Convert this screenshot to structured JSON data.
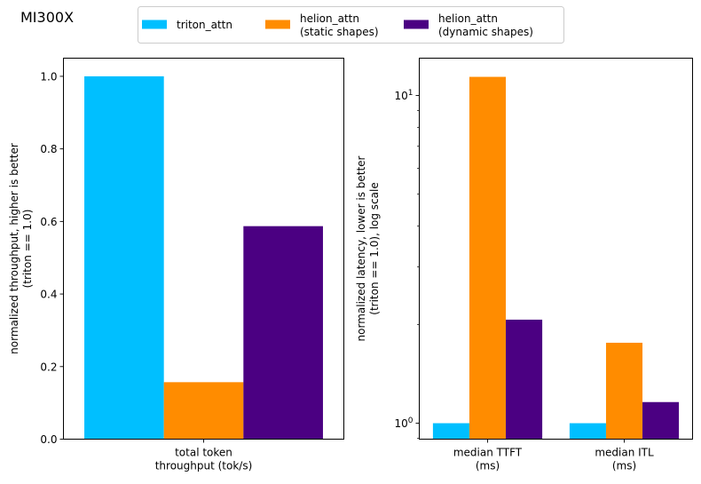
{
  "figure": {
    "suptitle": "MI300X"
  },
  "legend": {
    "placement": "top-center",
    "entries": [
      {
        "lines": [
          "triton_attn"
        ],
        "color": "#00bfff"
      },
      {
        "lines": [
          "helion_attn",
          "(static shapes)"
        ],
        "color": "#ff8c00"
      },
      {
        "lines": [
          "helion_attn",
          "(dynamic shapes)"
        ],
        "color": "#4b0082"
      }
    ]
  },
  "chart_data": [
    {
      "type": "bar",
      "title": "",
      "categories": [
        [
          "total token",
          "throughput (tok/s)"
        ]
      ],
      "series": [
        {
          "name": "triton_attn",
          "color": "#00bfff",
          "values": [
            1.0
          ]
        },
        {
          "name": "helion_attn (static shapes)",
          "color": "#ff8c00",
          "values": [
            0.157
          ]
        },
        {
          "name": "helion_attn (dynamic shapes)",
          "color": "#4b0082",
          "values": [
            0.587
          ]
        }
      ],
      "xlabel": "",
      "ylabel": [
        "normalized throughput, higher is better",
        "(triton == 1.0)"
      ],
      "yscale": "linear",
      "ylim": [
        0,
        1.05
      ],
      "yticks": [
        0.0,
        0.2,
        0.4,
        0.6,
        0.8,
        1.0
      ],
      "ytick_labels": [
        "0.0",
        "0.2",
        "0.4",
        "0.6",
        "0.8",
        "1.0"
      ],
      "grid": false
    },
    {
      "type": "bar",
      "title": "",
      "categories": [
        [
          "median TTFT",
          "(ms)"
        ],
        [
          "median ITL",
          "(ms)"
        ]
      ],
      "series": [
        {
          "name": "triton_attn",
          "color": "#00bfff",
          "values": [
            1.0,
            1.0
          ]
        },
        {
          "name": "helion_attn (static shapes)",
          "color": "#ff8c00",
          "values": [
            11.4,
            1.76
          ]
        },
        {
          "name": "helion_attn (dynamic shapes)",
          "color": "#4b0082",
          "values": [
            2.07,
            1.16
          ]
        }
      ],
      "xlabel": "",
      "ylabel": [
        "normalized latency, lower is better",
        "(triton == 1.0), log scale"
      ],
      "yscale": "log",
      "ylim": [
        0.894,
        13.0
      ],
      "yticks": [
        1,
        10
      ],
      "ytick_labels": [
        {
          "base": "10",
          "exp": "0"
        },
        {
          "base": "10",
          "exp": "1"
        }
      ],
      "minor_yticks": [
        0.9,
        2,
        3,
        4,
        5,
        6,
        7,
        8,
        9
      ],
      "grid": false
    }
  ]
}
